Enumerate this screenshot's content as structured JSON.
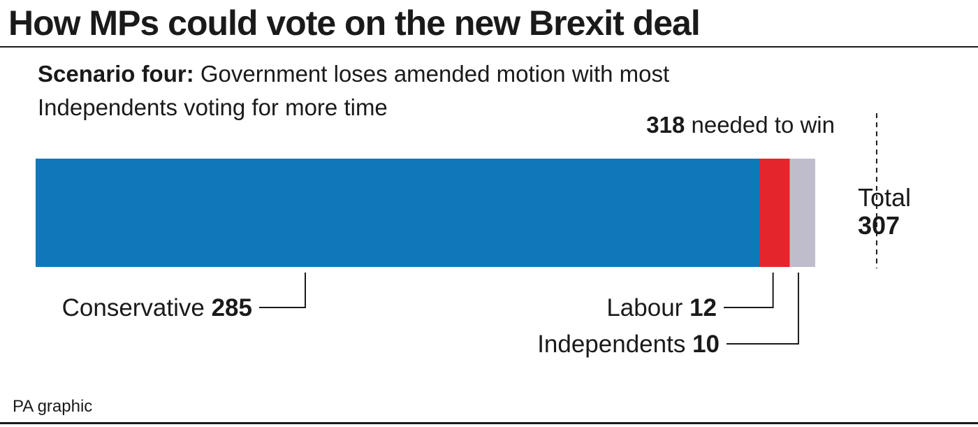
{
  "title": "How MPs could vote on the new Brexit deal",
  "subtitle": {
    "bold": "Scenario four:",
    "text": " Government loses amended motion with most Independents voting for more time"
  },
  "threshold": {
    "value": "318",
    "text": " needed to win"
  },
  "total": {
    "label": "Total",
    "value": "307"
  },
  "source": "PA graphic",
  "chart_data": {
    "type": "bar",
    "orientation": "horizontal-stacked",
    "series": [
      {
        "name": "Conservative",
        "value": 285,
        "color": "#1177bb"
      },
      {
        "name": "Labour",
        "value": 12,
        "color": "#e4262c"
      },
      {
        "name": "Independents",
        "value": 10,
        "color": "#bfbdcc"
      }
    ],
    "total": 307,
    "threshold": 318,
    "xlim": [
      0,
      318
    ]
  }
}
